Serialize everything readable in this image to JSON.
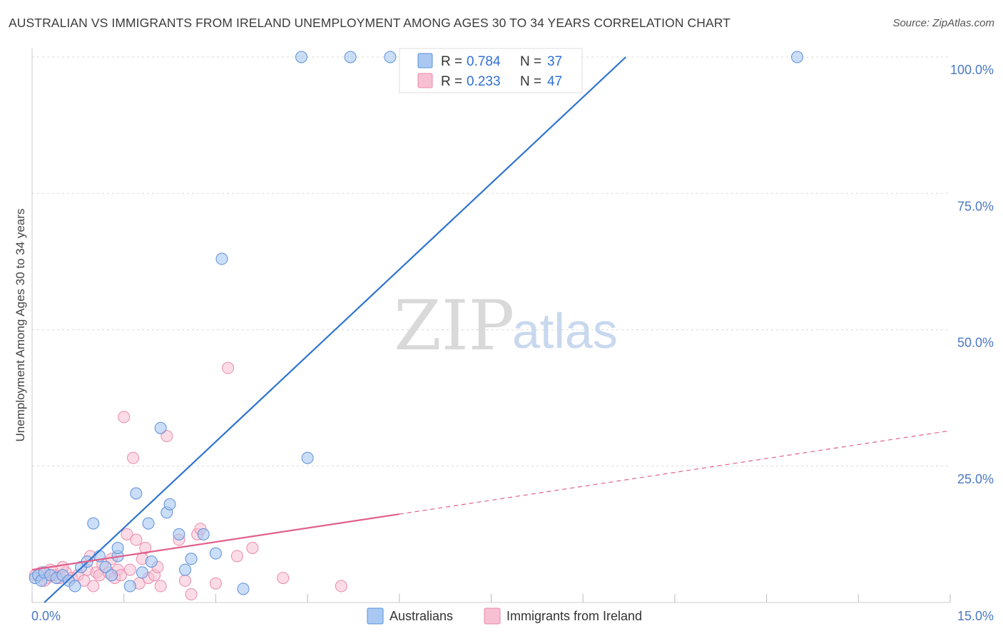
{
  "title": "AUSTRALIAN VS IMMIGRANTS FROM IRELAND UNEMPLOYMENT AMONG AGES 30 TO 34 YEARS CORRELATION CHART",
  "source": "Source: ZipAtlas.com",
  "watermark": {
    "zip": "ZIP",
    "atlas": "atlas"
  },
  "colors": {
    "blue_fill": "#a9c8f2",
    "blue_stroke": "#5b8fd8",
    "blue_line": "#2f74d0",
    "pink_fill": "#f7bfd2",
    "pink_stroke": "#e98aab",
    "pink_line": "#e0608c",
    "grid": "#d9d9d9",
    "tick_text": "#4a78c2"
  },
  "legend": {
    "rows": [
      {
        "r_label": "R = ",
        "r_value": "0.784",
        "n_label": "N = ",
        "n_value": "37"
      },
      {
        "r_label": "R = ",
        "r_value": "0.233",
        "n_label": "N = ",
        "n_value": "47"
      }
    ]
  },
  "chart_data": {
    "type": "scatter",
    "title": "AUSTRALIAN VS IMMIGRANTS FROM IRELAND UNEMPLOYMENT AMONG AGES 30 TO 34 YEARS CORRELATION CHART",
    "xlabel": "",
    "ylabel": "Unemployment Among Ages 30 to 34 years",
    "xlim": [
      0,
      15
    ],
    "ylim": [
      0,
      100
    ],
    "x_tick_labels": [
      "0.0%",
      "15.0%"
    ],
    "y_ticks": [
      25,
      50,
      75,
      100
    ],
    "y_tick_labels": [
      "25.0%",
      "50.0%",
      "75.0%",
      "100.0%"
    ],
    "grid": true,
    "legend_position": "top-center",
    "series": [
      {
        "name": "Australians",
        "color": "#a9c8f2",
        "trend": {
          "x": [
            0.2,
            9.7
          ],
          "y": [
            0.0,
            100.0
          ],
          "solid_until": 9.7
        },
        "points": [
          [
            0.05,
            4.5
          ],
          [
            0.1,
            5.0
          ],
          [
            0.15,
            4.0
          ],
          [
            0.2,
            5.5
          ],
          [
            0.3,
            5.0
          ],
          [
            0.4,
            4.5
          ],
          [
            0.5,
            5.0
          ],
          [
            0.6,
            4.0
          ],
          [
            0.7,
            3.0
          ],
          [
            0.8,
            6.5
          ],
          [
            0.9,
            7.5
          ],
          [
            1.0,
            14.5
          ],
          [
            1.1,
            8.5
          ],
          [
            1.2,
            6.5
          ],
          [
            1.3,
            5.0
          ],
          [
            1.4,
            8.5
          ],
          [
            1.6,
            3.0
          ],
          [
            1.4,
            10.0
          ],
          [
            1.7,
            20.0
          ],
          [
            1.9,
            14.5
          ],
          [
            1.8,
            5.5
          ],
          [
            1.95,
            7.5
          ],
          [
            2.1,
            32.0
          ],
          [
            2.2,
            16.5
          ],
          [
            2.25,
            18.0
          ],
          [
            2.4,
            12.5
          ],
          [
            2.5,
            6.0
          ],
          [
            2.6,
            8.0
          ],
          [
            2.8,
            12.5
          ],
          [
            3.0,
            9.0
          ],
          [
            3.1,
            63.0
          ],
          [
            3.45,
            2.5
          ],
          [
            4.4,
            100.0
          ],
          [
            5.2,
            100.0
          ],
          [
            5.85,
            100.0
          ],
          [
            12.5,
            100.0
          ],
          [
            4.5,
            26.5
          ]
        ]
      },
      {
        "name": "Immigrants from Ireland",
        "color": "#f7bfd2",
        "trend": {
          "x": [
            0.0,
            15.0
          ],
          "y": [
            6.0,
            31.5
          ],
          "solid_until": 6.0
        },
        "points": [
          [
            0.05,
            5.0
          ],
          [
            0.15,
            5.5
          ],
          [
            0.25,
            4.5
          ],
          [
            0.35,
            5.0
          ],
          [
            0.45,
            4.5
          ],
          [
            0.55,
            5.5
          ],
          [
            0.65,
            4.5
          ],
          [
            0.75,
            5.0
          ],
          [
            0.85,
            4.0
          ],
          [
            0.9,
            6.0
          ],
          [
            0.95,
            8.5
          ],
          [
            1.0,
            3.0
          ],
          [
            1.05,
            5.5
          ],
          [
            1.1,
            5.0
          ],
          [
            1.15,
            7.0
          ],
          [
            1.25,
            5.5
          ],
          [
            1.3,
            8.0
          ],
          [
            1.35,
            4.5
          ],
          [
            1.4,
            6.0
          ],
          [
            1.45,
            5.0
          ],
          [
            1.5,
            34.0
          ],
          [
            1.55,
            12.5
          ],
          [
            1.6,
            6.0
          ],
          [
            1.65,
            26.5
          ],
          [
            1.7,
            11.5
          ],
          [
            1.75,
            3.5
          ],
          [
            1.8,
            8.0
          ],
          [
            1.85,
            10.0
          ],
          [
            1.9,
            4.5
          ],
          [
            2.0,
            5.0
          ],
          [
            2.05,
            6.5
          ],
          [
            2.1,
            3.0
          ],
          [
            2.2,
            30.5
          ],
          [
            2.4,
            11.5
          ],
          [
            2.5,
            4.0
          ],
          [
            2.6,
            1.5
          ],
          [
            2.7,
            12.5
          ],
          [
            2.75,
            13.5
          ],
          [
            3.0,
            3.5
          ],
          [
            3.2,
            43.0
          ],
          [
            3.35,
            8.5
          ],
          [
            3.6,
            10.0
          ],
          [
            4.1,
            4.5
          ],
          [
            5.05,
            3.0
          ],
          [
            0.5,
            6.5
          ],
          [
            0.3,
            6.0
          ],
          [
            0.2,
            4.0
          ]
        ]
      }
    ]
  }
}
